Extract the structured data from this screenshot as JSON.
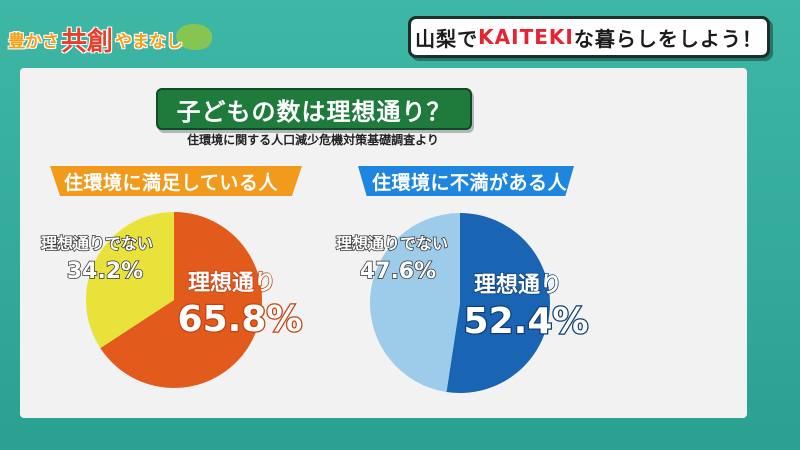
{
  "header": {
    "logo_prefix": "豊かさ",
    "logo_main": "共創",
    "logo_suffix": "やまなし",
    "headline_pre": "山梨で",
    "headline_accent": "KAITEKI",
    "headline_post": "な暮らしをしよう！"
  },
  "chart": {
    "title": "子どもの数は理想通り？",
    "source": "住環境に関する人口減少危機対策基礎調査より"
  },
  "chart_data": [
    {
      "type": "pie",
      "title": "住環境に満足している人",
      "categories": [
        "理想通り",
        "理想通りでない"
      ],
      "values": [
        65.8,
        34.2
      ],
      "value_labels": [
        "65.8%",
        "34.2%"
      ],
      "colors": [
        "#e35a1d",
        "#e8e23a"
      ]
    },
    {
      "type": "pie",
      "title": "住環境に不満がある人",
      "categories": [
        "理想通り",
        "理想通りでない"
      ],
      "values": [
        52.4,
        47.6
      ],
      "value_labels": [
        "52.4%",
        "47.6%"
      ],
      "colors": [
        "#1a65b3",
        "#9dcbea"
      ]
    }
  ]
}
